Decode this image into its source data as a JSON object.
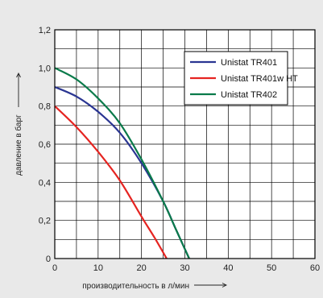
{
  "chart_data": {
    "type": "line",
    "xlabel": "производительность в л/мин",
    "ylabel": "давление в барг",
    "xlim": [
      0,
      60
    ],
    "ylim": [
      0,
      1.2
    ],
    "x_ticks": [
      "0",
      "10",
      "20",
      "30",
      "40",
      "50",
      "60"
    ],
    "y_ticks": [
      "0",
      "0,2",
      "0,4",
      "0,6",
      "0,8",
      "1,0",
      "1,2"
    ],
    "x_minor_step": 5,
    "y_minor_step": 0.1,
    "grid": true,
    "legend_position": "top-right",
    "series": [
      {
        "name": "Unistat TR401",
        "color": "#2a3592",
        "points": [
          [
            0,
            0.9
          ],
          [
            5,
            0.85
          ],
          [
            10,
            0.77
          ],
          [
            15,
            0.66
          ],
          [
            20,
            0.5
          ],
          [
            25,
            0.3
          ],
          [
            28,
            0.15
          ],
          [
            31,
            0.0
          ]
        ]
      },
      {
        "name": "Unistat TR401w HT",
        "color": "#e52421",
        "points": [
          [
            0,
            0.8
          ],
          [
            5,
            0.69
          ],
          [
            10,
            0.56
          ],
          [
            15,
            0.41
          ],
          [
            20,
            0.22
          ],
          [
            23,
            0.11
          ],
          [
            25.8,
            0.0
          ]
        ]
      },
      {
        "name": "Unistat TR402",
        "color": "#0a7a4a",
        "points": [
          [
            0,
            1.0
          ],
          [
            5,
            0.94
          ],
          [
            10,
            0.84
          ],
          [
            15,
            0.71
          ],
          [
            20,
            0.52
          ],
          [
            25,
            0.3
          ],
          [
            28,
            0.15
          ],
          [
            31,
            0.0
          ]
        ]
      }
    ]
  },
  "colors": {
    "background": "#e9e9e9",
    "plot_background": "#ffffff",
    "grid": "#000000"
  }
}
